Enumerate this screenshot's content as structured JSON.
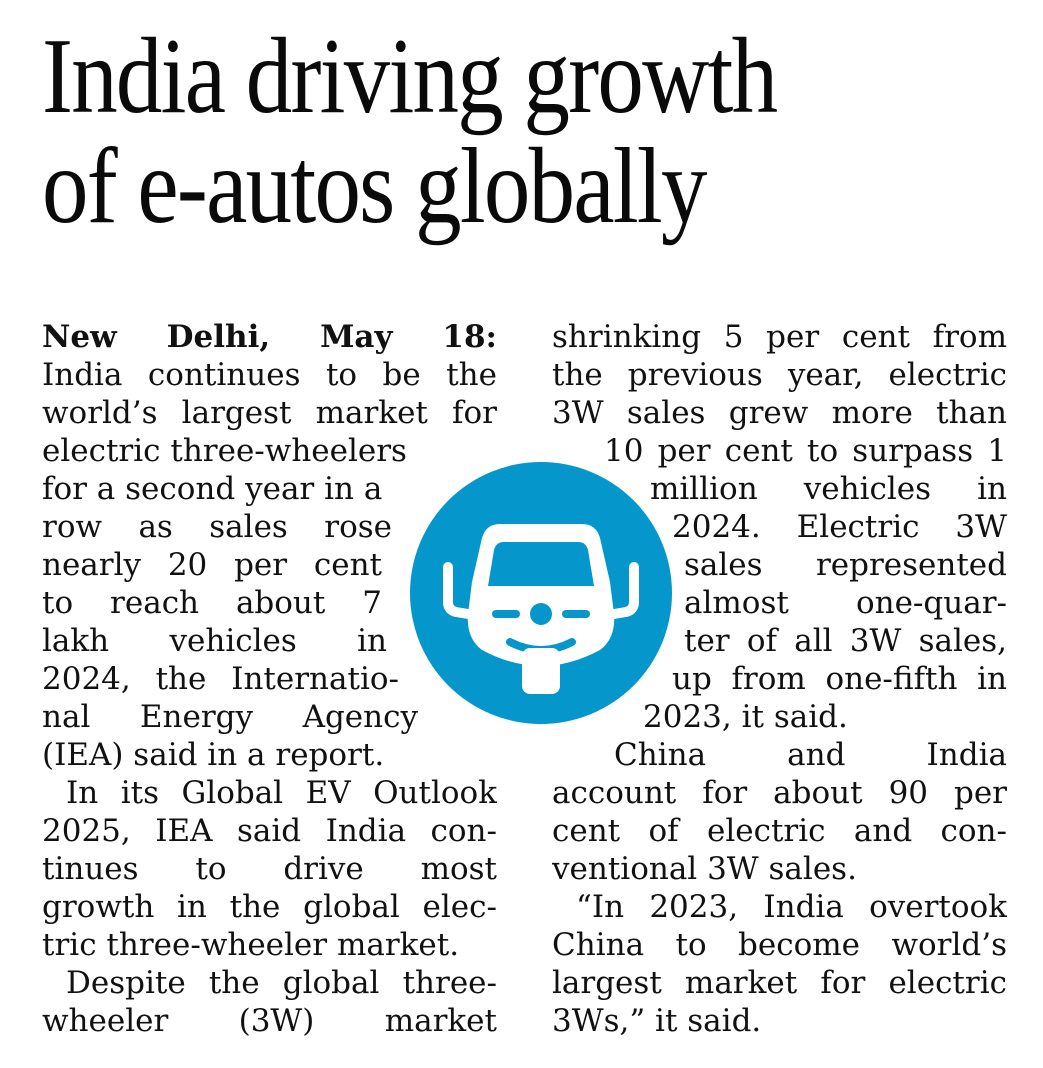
{
  "headline": {
    "line1": "India driving growth",
    "line2": "of e-autos globally"
  },
  "emblem": {
    "icon": "electric-three-wheeler-icon",
    "color": "#0597cc"
  },
  "article": {
    "dateline": "New Delhi, May 18:",
    "left_lines": [
      "India continues to be the",
      "world’s largest market for",
      "electric  three-wheelers",
      "for a second year in a",
      "row as sales rose",
      "nearly 20 per cent",
      "to reach about 7",
      "lakh vehicles in",
      "2024, the Internatio-",
      "nal Energy Agency",
      "(IEA) said in a report.",
      "In its Global EV Outlook",
      "2025, IEA said India con-",
      "tinues to drive most",
      "growth in the global elec-",
      "tric three-wheeler market.",
      "Despite the global three-",
      "wheeler (3W) market"
    ],
    "right_lines": [
      "shrinking 5 per cent from",
      "the previous year, electric",
      "3W sales grew more than",
      "10 per cent to surpass 1",
      "million vehicles in",
      "2024. Electric 3W",
      "sales represented",
      "almost one-quar-",
      "ter of all 3W sales,",
      "up from one-fifth in",
      "2023, it said.",
      "China and India",
      "account for  about 90 per",
      "cent of electric and con-",
      "ventional 3W sales.",
      "“In 2023, India overtook",
      "China to become world’s",
      "largest market for electric",
      "3Ws,” it said."
    ]
  }
}
